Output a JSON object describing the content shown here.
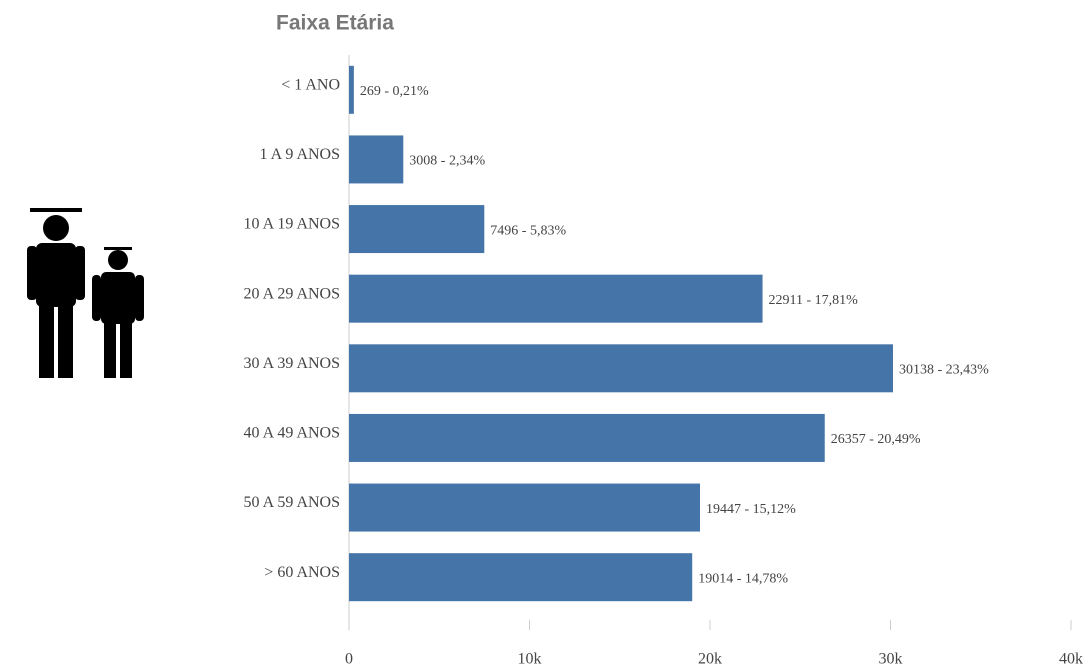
{
  "chart_data": {
    "type": "bar",
    "orientation": "horizontal",
    "title": "Faixa Etária",
    "categories": [
      "< 1 ANO",
      "1 A 9 ANOS",
      "10 A 19 ANOS",
      "20 A 29 ANOS",
      "30 A 39 ANOS",
      "40 A 49 ANOS",
      "50 A 59 ANOS",
      "> 60 ANOS"
    ],
    "values": [
      269,
      3008,
      7496,
      22911,
      30138,
      26357,
      19447,
      19014
    ],
    "value_labels": [
      "269 - 0,21%",
      "3008 - 2,34%",
      "7496 - 5,83%",
      "22911 - 17,81%",
      "30138 - 23,43%",
      "26357 - 20,49%",
      "19447 - 15,12%",
      "19014 - 14,78%"
    ],
    "color": "#4575a8",
    "xlim": [
      0,
      40000
    ],
    "xticks": [
      0,
      {
        "value": 10000,
        "label": "10k"
      },
      {
        "value": 20000,
        "label": "20k"
      },
      {
        "value": 30000,
        "label": "30k"
      },
      {
        "value": 40000,
        "label": "40k"
      }
    ],
    "grid": false
  }
}
